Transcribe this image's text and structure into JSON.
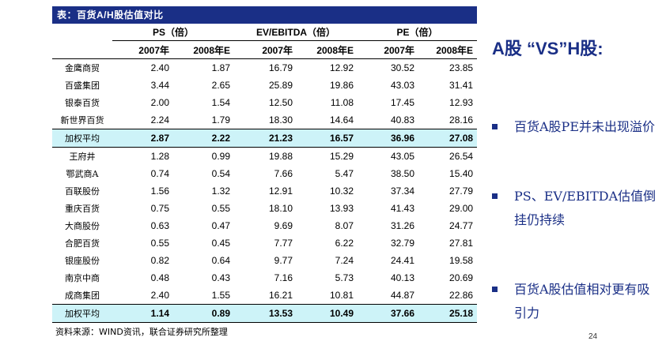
{
  "table": {
    "title": "表：百货A/H股估值对比",
    "groups": [
      "PS（倍）",
      "EV/EBITDA（倍）",
      "PE（倍）"
    ],
    "subheaders": [
      "2007年",
      "2008年E",
      "2007年",
      "2008年E",
      "2007年",
      "2008年E"
    ],
    "rows": [
      {
        "name": "金鹰商贸",
        "values": [
          "2.40",
          "1.87",
          "16.79",
          "12.92",
          "30.52",
          "23.85"
        ]
      },
      {
        "name": "百盛集团",
        "values": [
          "3.44",
          "2.65",
          "25.89",
          "19.86",
          "43.03",
          "31.41"
        ]
      },
      {
        "name": "银泰百货",
        "values": [
          "2.00",
          "1.54",
          "12.50",
          "11.08",
          "17.45",
          "12.93"
        ]
      },
      {
        "name": "新世界百货",
        "values": [
          "2.24",
          "1.79",
          "18.30",
          "14.64",
          "40.83",
          "28.16"
        ]
      },
      {
        "name": "加权平均",
        "values": [
          "2.87",
          "2.22",
          "21.23",
          "16.57",
          "36.96",
          "27.08"
        ],
        "avg": true
      },
      {
        "name": "王府井",
        "values": [
          "1.28",
          "0.99",
          "19.88",
          "15.29",
          "43.05",
          "26.54"
        ]
      },
      {
        "name": "鄂武商A",
        "values": [
          "0.74",
          "0.54",
          "7.66",
          "5.47",
          "38.50",
          "15.40"
        ]
      },
      {
        "name": "百联股份",
        "values": [
          "1.56",
          "1.32",
          "12.91",
          "10.32",
          "37.34",
          "27.79"
        ]
      },
      {
        "name": "重庆百货",
        "values": [
          "0.75",
          "0.55",
          "18.10",
          "13.93",
          "41.43",
          "29.00"
        ]
      },
      {
        "name": "大商股份",
        "values": [
          "0.63",
          "0.47",
          "9.69",
          "8.07",
          "31.26",
          "24.77"
        ]
      },
      {
        "name": "合肥百货",
        "values": [
          "0.55",
          "0.45",
          "7.77",
          "6.22",
          "32.79",
          "27.81"
        ]
      },
      {
        "name": "银座股份",
        "values": [
          "0.82",
          "0.64",
          "9.77",
          "7.24",
          "24.41",
          "19.58"
        ]
      },
      {
        "name": "南京中商",
        "values": [
          "0.48",
          "0.43",
          "7.16",
          "5.73",
          "40.13",
          "20.69"
        ]
      },
      {
        "name": "成商集团",
        "values": [
          "2.40",
          "1.55",
          "16.21",
          "10.81",
          "44.87",
          "22.86"
        ]
      },
      {
        "name": "加权平均",
        "values": [
          "1.14",
          "0.89",
          "13.53",
          "10.49",
          "37.66",
          "25.18"
        ],
        "avg": true
      }
    ],
    "source": "资料来源：WIND资讯，联合证券研究所整理"
  },
  "side": {
    "title": "A股 “VS”H股:",
    "bullets": [
      "百货A股PE并未出现溢价",
      "PS、EV/EBITDA估值倒挂仍持续",
      "百货A股估值相对更有吸引力"
    ]
  },
  "page_number": "24",
  "colors": {
    "header_bg": "#1a2f86",
    "highlight_row": "#cdf3f8",
    "accent_text": "#1a2f86"
  }
}
